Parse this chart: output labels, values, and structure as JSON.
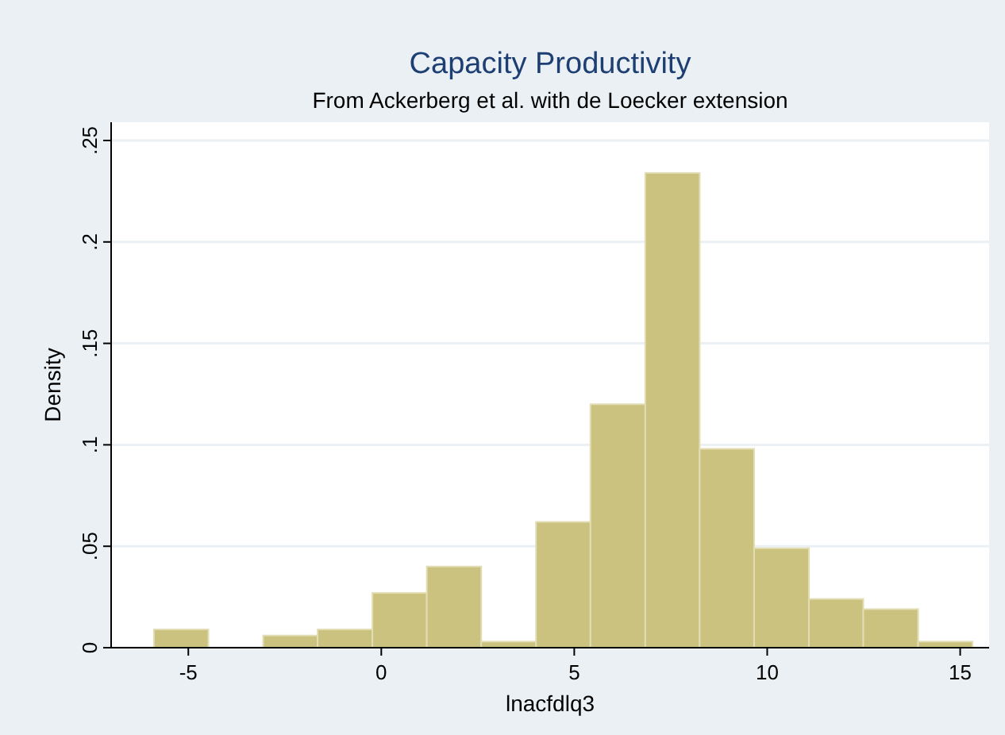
{
  "chart_data": {
    "type": "histogram",
    "title": "Capacity Productivity",
    "subtitle": "From Ackerberg et al. with de Loecker extension",
    "xlabel": "lnacfdlq3",
    "ylabel": "Density",
    "bins": [
      -5.89,
      -4.48,
      -3.06,
      -1.65,
      -0.23,
      1.18,
      2.59,
      4.01,
      5.42,
      6.84,
      8.25,
      9.66,
      11.08,
      12.49,
      13.91,
      15.32
    ],
    "values": [
      0.009,
      0,
      0.006,
      0.009,
      0.027,
      0.04,
      0.003,
      0.062,
      0.12,
      0.234,
      0.098,
      0.049,
      0.024,
      0.019,
      0.003
    ],
    "color": "#cac27e",
    "xlim": [
      -7,
      15.75
    ],
    "ylim": [
      0,
      0.259
    ],
    "xticks": [
      -5,
      0,
      5,
      10,
      15
    ],
    "yticks": [
      0,
      {
        "value": 0.05,
        "label": ".05"
      },
      {
        "value": 0.1,
        "label": ".1"
      },
      {
        "value": 0.15,
        "label": ".15"
      },
      {
        "value": 0.2,
        "label": ".2"
      },
      {
        "value": 0.25,
        "label": ".25"
      }
    ],
    "grid": "y"
  }
}
